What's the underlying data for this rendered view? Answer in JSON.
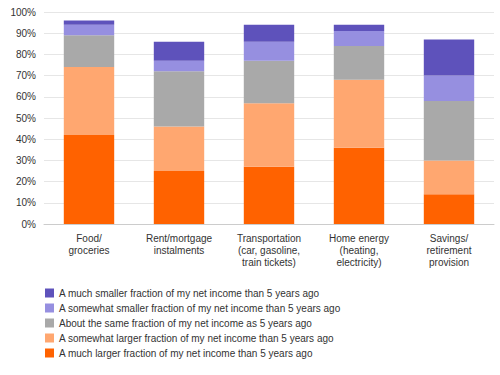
{
  "chart_data": {
    "type": "bar",
    "stacked": true,
    "grid": true,
    "legend": "bottom",
    "categories": [
      "Food/\ngroceries",
      "Rent/mortgage\ninstalments",
      "Transportation\n(car, gasoline,\ntrain tickets)",
      "Home energy\n(heating,\nelectricity)",
      "Savings/\nretirement\nprovision"
    ],
    "series": [
      {
        "name": "A much larger fraction of my net income than 5 years ago",
        "color": "#FF6200",
        "values": [
          42,
          25,
          27,
          36,
          14
        ]
      },
      {
        "name": "A somewhat larger fraction of my net income than 5 years ago",
        "color": "#FFA770",
        "values": [
          32,
          21,
          30,
          32,
          16
        ]
      },
      {
        "name": "About the same fraction of my net income as 5 years ago",
        "color": "#A9A9A9",
        "values": [
          15,
          26,
          20,
          16,
          28
        ]
      },
      {
        "name": "A somewhat smaller fraction of my net income than 5 years ago",
        "color": "#968FE0",
        "values": [
          5,
          5,
          9,
          7,
          12
        ]
      },
      {
        "name": "A much smaller fraction of my net income than 5 years ago",
        "color": "#5E52BB",
        "values": [
          2,
          9,
          8,
          3,
          17
        ]
      }
    ],
    "ylim": [
      0,
      100
    ],
    "yticks": [
      {
        "value": 0,
        "label": "0%"
      },
      {
        "value": 10,
        "label": "10%"
      },
      {
        "value": 20,
        "label": "20%"
      },
      {
        "value": 30,
        "label": "30%"
      },
      {
        "value": 40,
        "label": "40%"
      },
      {
        "value": 50,
        "label": "50%"
      },
      {
        "value": 60,
        "label": "60%"
      },
      {
        "value": 70,
        "label": "70%"
      },
      {
        "value": 80,
        "label": "80%"
      },
      {
        "value": 90,
        "label": "90%"
      },
      {
        "value": 100,
        "label": "100%"
      }
    ]
  }
}
